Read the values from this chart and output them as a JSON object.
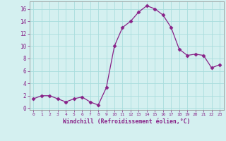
{
  "x": [
    0,
    1,
    2,
    3,
    4,
    5,
    6,
    7,
    8,
    9,
    10,
    11,
    12,
    13,
    14,
    15,
    16,
    17,
    18,
    19,
    20,
    21,
    22,
    23
  ],
  "y": [
    1.5,
    2.0,
    2.0,
    1.5,
    1.0,
    1.5,
    1.8,
    1.0,
    0.5,
    3.3,
    10.0,
    13.0,
    14.0,
    15.5,
    16.5,
    16.0,
    15.0,
    13.0,
    9.5,
    8.5,
    8.7,
    8.5,
    6.5,
    7.0
  ],
  "line_color": "#882288",
  "marker": "D",
  "marker_size": 2.5,
  "bg_color": "#d4f0f0",
  "grid_color": "#aadddd",
  "xlabel": "Windchill (Refroidissement éolien,°C)",
  "xlabel_color": "#882288",
  "tick_color": "#882288",
  "spine_color": "#888888",
  "ylim": [
    -0.3,
    17.2
  ],
  "xlim": [
    -0.5,
    23.5
  ],
  "yticks": [
    0,
    2,
    4,
    6,
    8,
    10,
    12,
    14,
    16
  ],
  "xticks": [
    0,
    1,
    2,
    3,
    4,
    5,
    6,
    7,
    8,
    9,
    10,
    11,
    12,
    13,
    14,
    15,
    16,
    17,
    18,
    19,
    20,
    21,
    22,
    23
  ]
}
